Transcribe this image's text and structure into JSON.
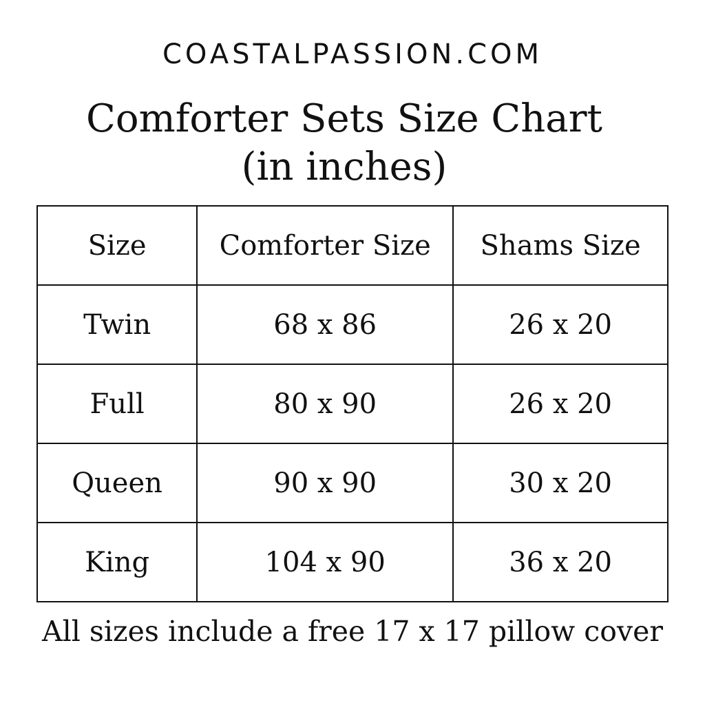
{
  "brand": "COASTALPASSION.COM",
  "title": {
    "line1": "Comforter Sets Size Chart",
    "line2": "(in inches)"
  },
  "table": {
    "headers": [
      "Size",
      "Comforter Size",
      "Shams Size"
    ],
    "rows": [
      [
        "Twin",
        "68 x 86",
        "26 x 20"
      ],
      [
        "Full",
        "80 x 90",
        "26 x 20"
      ],
      [
        "Queen",
        "90 x 90",
        "30 x 20"
      ],
      [
        "King",
        "104 x 90",
        "36 x 20"
      ]
    ]
  },
  "footer": "All sizes include a free 17 x 17 pillow cover"
}
